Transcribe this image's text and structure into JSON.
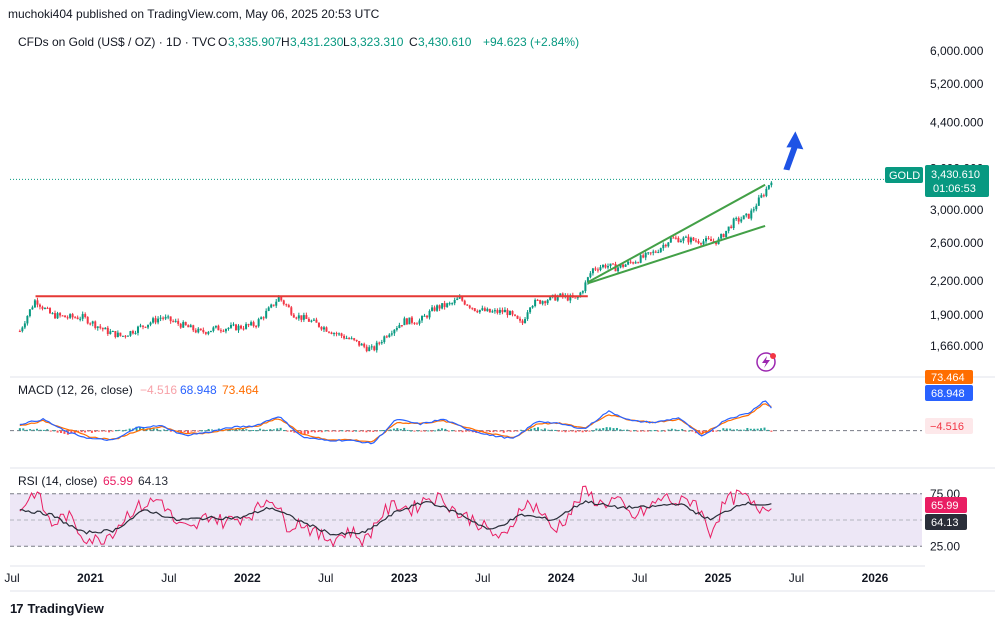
{
  "header": {
    "published": "muchoki404 published on TradingView.com, May 06, 2025 20:53 UTC"
  },
  "legend": {
    "symbol": "CFDs on Gold (US$ / OZ) · 1D · TVC",
    "o_label": "O",
    "o": "3,335.907",
    "h_label": "H",
    "h": "3,431.230",
    "l_label": "L",
    "l": "3,323.310",
    "c_label": "C",
    "c": "3,430.610",
    "change": "+94.623 (+2.84%)"
  },
  "price_badge": {
    "ticker": "GOLD",
    "price": "3,430.610",
    "countdown": "01:06:53"
  },
  "macd_legend": {
    "title": "MACD (12, 26, close)",
    "hist": "−4.516",
    "macd": "68.948",
    "signal": "73.464"
  },
  "macd_badges": {
    "macd": "68.948",
    "signal": "73.464",
    "hist": "−4.516"
  },
  "rsi_legend": {
    "title": "RSI (14, close)",
    "rsi": "65.99",
    "ma": "64.13"
  },
  "rsi_badges": {
    "rsi": "65.99",
    "ma": "64.13"
  },
  "footer": {
    "brand": "TradingView",
    "logo": "tv-logo-icon"
  },
  "colors": {
    "price": "#089981",
    "down": "#f23645",
    "macd": "#2962ff",
    "signal": "#ff6d00",
    "rsi": "#e91e63",
    "rsi_ma": "#2a2e39",
    "trend_green": "#43a047",
    "resistance": "#e53935",
    "arrow": "#1e53e5",
    "rsi_band": "#ede7f6",
    "badge_green": "#089981"
  },
  "chart_data": [
    {
      "type": "candlestick",
      "title": "CFDs on Gold (US$ / OZ) · 1D · TVC",
      "y_scale": "log",
      "y_ticks": [
        "6,000.000",
        "5,200.000",
        "4,400.000",
        "3,600.000",
        "3,000.000",
        "2,600.000",
        "2,200.000",
        "1,900.000",
        "1,660.000"
      ],
      "y_tick_values": [
        6000,
        5200,
        4400,
        3600,
        3000,
        2600,
        2200,
        1900,
        1660
      ],
      "x_ticks": [
        "Jul",
        "2021",
        "Jul",
        "2022",
        "Jul",
        "2023",
        "Jul",
        "2024",
        "Jul",
        "2025",
        "Jul",
        "2026"
      ],
      "x_tick_dates": [
        2020.5,
        2021.0,
        2021.5,
        2022.0,
        2022.5,
        2023.0,
        2023.5,
        2024.0,
        2024.5,
        2025.0,
        2025.5,
        2026.0
      ],
      "x_range": [
        2020.5,
        2026.3
      ],
      "series": [
        {
          "x": [
            2020.55,
            2020.6,
            2020.65,
            2020.7,
            2020.75,
            2020.85,
            2020.95,
            2021.1,
            2021.2,
            2021.3,
            2021.45,
            2021.6,
            2021.7,
            2021.8,
            2021.95,
            2022.05,
            2022.15,
            2022.2,
            2022.3,
            2022.4,
            2022.55,
            2022.65,
            2022.75,
            2022.8,
            2022.9,
            2023.0,
            2023.1,
            2023.2,
            2023.3,
            2023.35,
            2023.45,
            2023.55,
            2023.65,
            2023.75,
            2023.8,
            2023.9,
            2024.0,
            2024.1,
            2024.15,
            2024.2,
            2024.28,
            2024.35,
            2024.45,
            2024.55,
            2024.6,
            2024.7,
            2024.8,
            2024.9,
            2025.0,
            2025.1,
            2025.2,
            2025.25,
            2025.3,
            2025.34
          ],
          "y": [
            1770,
            1900,
            2030,
            1960,
            1900,
            1880,
            1880,
            1770,
            1730,
            1790,
            1880,
            1810,
            1760,
            1790,
            1800,
            1820,
            1960,
            2050,
            1900,
            1850,
            1760,
            1710,
            1650,
            1630,
            1760,
            1850,
            1850,
            1960,
            1990,
            2040,
            1950,
            1920,
            1930,
            1820,
            1990,
            2030,
            2060,
            2030,
            2160,
            2320,
            2360,
            2330,
            2390,
            2460,
            2500,
            2650,
            2640,
            2620,
            2620,
            2850,
            2930,
            3100,
            3250,
            3431
          ]
        }
      ],
      "annotations": {
        "resistance_level": 2060,
        "resistance_range": [
          2020.65,
          2024.17
        ],
        "upper_trend": [
          [
            2024.17,
            2190
          ],
          [
            2025.3,
            3350
          ]
        ],
        "lower_trend": [
          [
            2024.17,
            2180
          ],
          [
            2025.3,
            2800
          ]
        ],
        "current_price": 3430.61
      }
    },
    {
      "type": "line",
      "title": "MACD (12, 26, close)",
      "series": [
        {
          "name": "MACD",
          "x": [
            2020.55,
            2020.7,
            2020.85,
            2021.0,
            2021.15,
            2021.3,
            2021.45,
            2021.6,
            2021.75,
            2021.9,
            2022.05,
            2022.2,
            2022.35,
            2022.5,
            2022.65,
            2022.8,
            2022.95,
            2023.1,
            2023.25,
            2023.4,
            2023.55,
            2023.7,
            2023.85,
            2024.0,
            2024.15,
            2024.3,
            2024.45,
            2024.6,
            2024.75,
            2024.9,
            2025.05,
            2025.2,
            2025.3,
            2025.34
          ],
          "y": [
            20,
            35,
            -5,
            -25,
            -30,
            10,
            15,
            -15,
            -5,
            10,
            15,
            45,
            -20,
            -30,
            -30,
            -40,
            35,
            20,
            35,
            5,
            -15,
            -25,
            30,
            20,
            5,
            60,
            30,
            25,
            40,
            -20,
            35,
            55,
            95,
            68.948
          ]
        },
        {
          "name": "Signal",
          "x": [
            2020.55,
            2020.7,
            2020.85,
            2021.0,
            2021.15,
            2021.3,
            2021.45,
            2021.6,
            2021.75,
            2021.9,
            2022.05,
            2022.2,
            2022.35,
            2022.5,
            2022.65,
            2022.8,
            2022.95,
            2023.1,
            2023.25,
            2023.4,
            2023.55,
            2023.7,
            2023.85,
            2024.0,
            2024.15,
            2024.3,
            2024.45,
            2024.6,
            2024.75,
            2024.9,
            2025.05,
            2025.2,
            2025.3,
            2025.34
          ],
          "y": [
            15,
            30,
            5,
            -20,
            -28,
            0,
            12,
            -8,
            -8,
            5,
            12,
            38,
            -10,
            -28,
            -28,
            -35,
            25,
            22,
            30,
            10,
            -10,
            -22,
            22,
            22,
            8,
            50,
            32,
            25,
            35,
            -10,
            28,
            50,
            85,
            73.464
          ]
        },
        {
          "name": "Histogram",
          "x": [
            2025.34
          ],
          "y": [
            -4.516
          ]
        }
      ],
      "y_range": [
        -60,
        110
      ]
    },
    {
      "type": "line",
      "title": "RSI (14, close)",
      "y_ticks": [
        "75.00",
        "25.00"
      ],
      "y_tick_values": [
        75,
        25
      ],
      "series": [
        {
          "name": "RSI",
          "x": [
            2020.55,
            2020.65,
            2020.75,
            2020.85,
            2020.95,
            2021.05,
            2021.15,
            2021.25,
            2021.35,
            2021.45,
            2021.55,
            2021.65,
            2021.75,
            2021.85,
            2021.95,
            2022.05,
            2022.15,
            2022.25,
            2022.35,
            2022.45,
            2022.55,
            2022.65,
            2022.75,
            2022.85,
            2022.95,
            2023.05,
            2023.15,
            2023.25,
            2023.35,
            2023.45,
            2023.55,
            2023.65,
            2023.75,
            2023.85,
            2023.95,
            2024.05,
            2024.15,
            2024.25,
            2024.35,
            2024.45,
            2024.55,
            2024.65,
            2024.75,
            2024.85,
            2024.95,
            2025.05,
            2025.15,
            2025.25,
            2025.34
          ],
          "y": [
            60,
            78,
            45,
            55,
            35,
            30,
            40,
            58,
            65,
            70,
            45,
            40,
            55,
            48,
            52,
            58,
            74,
            45,
            48,
            35,
            32,
            40,
            30,
            55,
            65,
            60,
            72,
            70,
            55,
            50,
            38,
            32,
            66,
            62,
            40,
            55,
            78,
            65,
            70,
            52,
            60,
            72,
            66,
            70,
            38,
            68,
            74,
            60,
            65.99
          ]
        },
        {
          "name": "RSI MA",
          "x": [
            2020.55,
            2020.75,
            2020.95,
            2021.15,
            2021.35,
            2021.55,
            2021.75,
            2021.95,
            2022.15,
            2022.35,
            2022.55,
            2022.75,
            2022.95,
            2023.15,
            2023.35,
            2023.55,
            2023.75,
            2023.95,
            2024.15,
            2024.35,
            2024.55,
            2024.75,
            2024.95,
            2025.15,
            2025.34
          ],
          "y": [
            60,
            55,
            38,
            40,
            60,
            50,
            52,
            52,
            62,
            48,
            36,
            38,
            58,
            68,
            56,
            40,
            55,
            50,
            68,
            62,
            62,
            66,
            50,
            66,
            64.13
          ]
        }
      ],
      "y_range": [
        10,
        90
      ]
    }
  ]
}
